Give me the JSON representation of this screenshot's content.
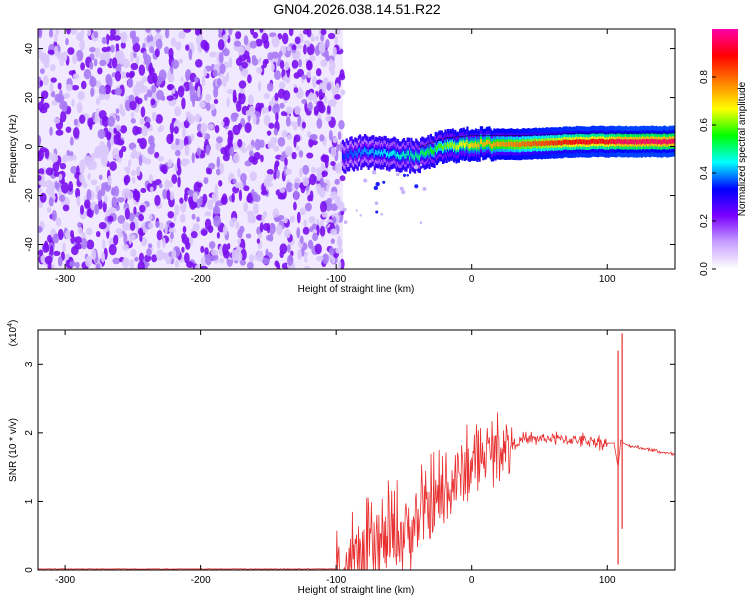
{
  "window": {
    "title": "GN04.2026.038.14.51.R22"
  },
  "chart_data": [
    {
      "type": "heatmap",
      "title": "GN04.2026.038.14.51.R22",
      "xlabel": "Height of straight line (km)",
      "ylabel": "Frequency (Hz)",
      "xlim": [
        -320,
        150
      ],
      "ylim": [
        -50,
        48
      ],
      "x_ticks": [
        -300,
        -200,
        -100,
        0,
        100
      ],
      "y_ticks": [
        -40,
        -20,
        0,
        20,
        40
      ],
      "colorbar": {
        "label": "Normalized spectral amplitude",
        "ticks": [
          0.0,
          0.2,
          0.4,
          0.6,
          0.8
        ],
        "range": [
          0,
          1
        ],
        "colormap": [
          "#ffffff",
          "#c8a0ff",
          "#7a00ff",
          "#0000ff",
          "#00ffff",
          "#00ff00",
          "#ffff00",
          "#ff8000",
          "#ff0000",
          "#ff00aa"
        ]
      },
      "noise_region_x": [
        -320,
        -95
      ],
      "ridge": {
        "x": [
          -95,
          -80,
          -60,
          -40,
          -20,
          0,
          20,
          40,
          60,
          80,
          100,
          110,
          130,
          150
        ],
        "freq": [
          -4,
          -2,
          -3,
          -4,
          0,
          1,
          1,
          1,
          1.5,
          2,
          2,
          2,
          2,
          2
        ],
        "amplitude": [
          0.35,
          0.4,
          0.45,
          0.5,
          0.6,
          0.7,
          0.75,
          0.8,
          0.85,
          0.9,
          0.9,
          0.95,
          0.95,
          0.95
        ]
      }
    },
    {
      "type": "line",
      "xlabel": "Height of straight line (km)",
      "ylabel": "SNR (10 * v/v)",
      "y_scale_label": "(x10",
      "y_scale_exponent": "4",
      "xlim": [
        -320,
        150
      ],
      "ylim": [
        0,
        3.5
      ],
      "x_ticks": [
        -300,
        -200,
        -100,
        0,
        100
      ],
      "y_ticks": [
        0,
        1,
        2,
        3
      ],
      "series": [
        {
          "color": "#e83030",
          "x": [
            -320,
            -100,
            -80,
            -70,
            -60,
            -50,
            -40,
            -30,
            -20,
            -10,
            0,
            10,
            20,
            30,
            40,
            50,
            60,
            70,
            80,
            90,
            100,
            105,
            108,
            110,
            112,
            115,
            120,
            130,
            140,
            150
          ],
          "y": [
            0.01,
            0.01,
            0.15,
            0.3,
            0.45,
            0.55,
            0.7,
            0.9,
            1.1,
            1.35,
            1.55,
            1.7,
            1.8,
            1.85,
            1.9,
            1.92,
            1.92,
            1.9,
            1.9,
            1.88,
            1.85,
            1.85,
            1.5,
            1.9,
            1.85,
            1.82,
            1.8,
            1.76,
            1.72,
            1.68
          ],
          "spikes": [
            {
              "x": 108,
              "y_min": 0.08,
              "y_max": 3.2
            },
            {
              "x": 111,
              "y_min": 0.6,
              "y_max": 3.45
            }
          ],
          "noise_amplitude": [
            {
              "x_from": -100,
              "x_to": 0,
              "amp": 0.55
            },
            {
              "x_from": 0,
              "x_to": 30,
              "amp": 0.35
            },
            {
              "x_from": 30,
              "x_to": 100,
              "amp": 0.08
            },
            {
              "x_from": 115,
              "x_to": 150,
              "amp": 0.02
            }
          ]
        }
      ]
    }
  ]
}
